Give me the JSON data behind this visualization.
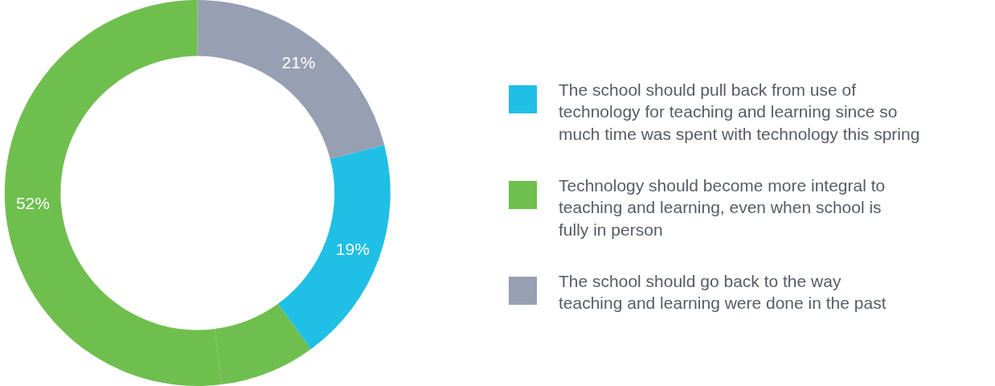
{
  "chart_data": {
    "type": "donut",
    "categories": [
      "The school should pull back from use of\ntechnology for teaching and learning since so\nmuch time was spent with technology this spring",
      null,
      "Technology should become more integral to\nteaching and learning, even when school is\nfully in person",
      "The school should go back to the way\nteaching and learning were done in the past"
    ],
    "values": [
      19,
      8,
      52,
      21
    ],
    "value_labels": [
      "19%",
      null,
      "52%",
      "21%"
    ],
    "colors": [
      "#1fbfe6",
      "#6fbf4f",
      "#6fbf4f",
      "#979fb3"
    ],
    "legend": "right"
  }
}
